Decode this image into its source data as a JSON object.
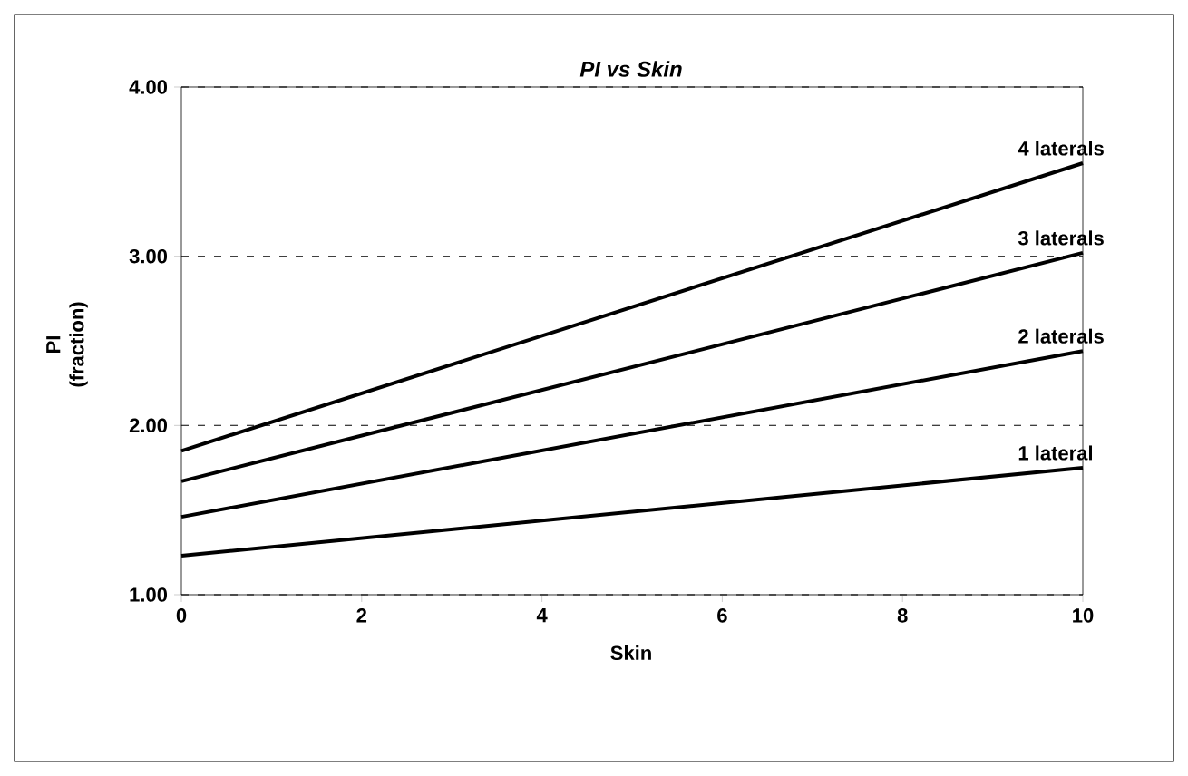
{
  "chart_data": {
    "type": "line",
    "title": "PI vs Skin",
    "xlabel": "Skin",
    "ylabel": "PI (fraction)",
    "x": [
      0,
      10
    ],
    "xlim": [
      0,
      10
    ],
    "xticks": [
      0,
      2,
      4,
      6,
      8,
      10
    ],
    "ylim": [
      1,
      4
    ],
    "yticks": [
      {
        "value": 1,
        "label": "1.00"
      },
      {
        "value": 2,
        "label": "2.00"
      },
      {
        "value": 3,
        "label": "3.00"
      },
      {
        "value": 4,
        "label": "4.00"
      }
    ],
    "grid": "y",
    "legend": false,
    "marker": "none",
    "line_style": "solid",
    "series": [
      {
        "name": "1  lateral",
        "color": "#000000",
        "values": [
          1.23,
          1.75
        ]
      },
      {
        "name": "2  laterals",
        "color": "#000000",
        "values": [
          1.46,
          2.44
        ]
      },
      {
        "name": "3  laterals",
        "color": "#000000",
        "values": [
          1.67,
          3.02
        ]
      },
      {
        "name": "4  laterals",
        "color": "#000000",
        "values": [
          1.85,
          3.55
        ]
      }
    ]
  }
}
